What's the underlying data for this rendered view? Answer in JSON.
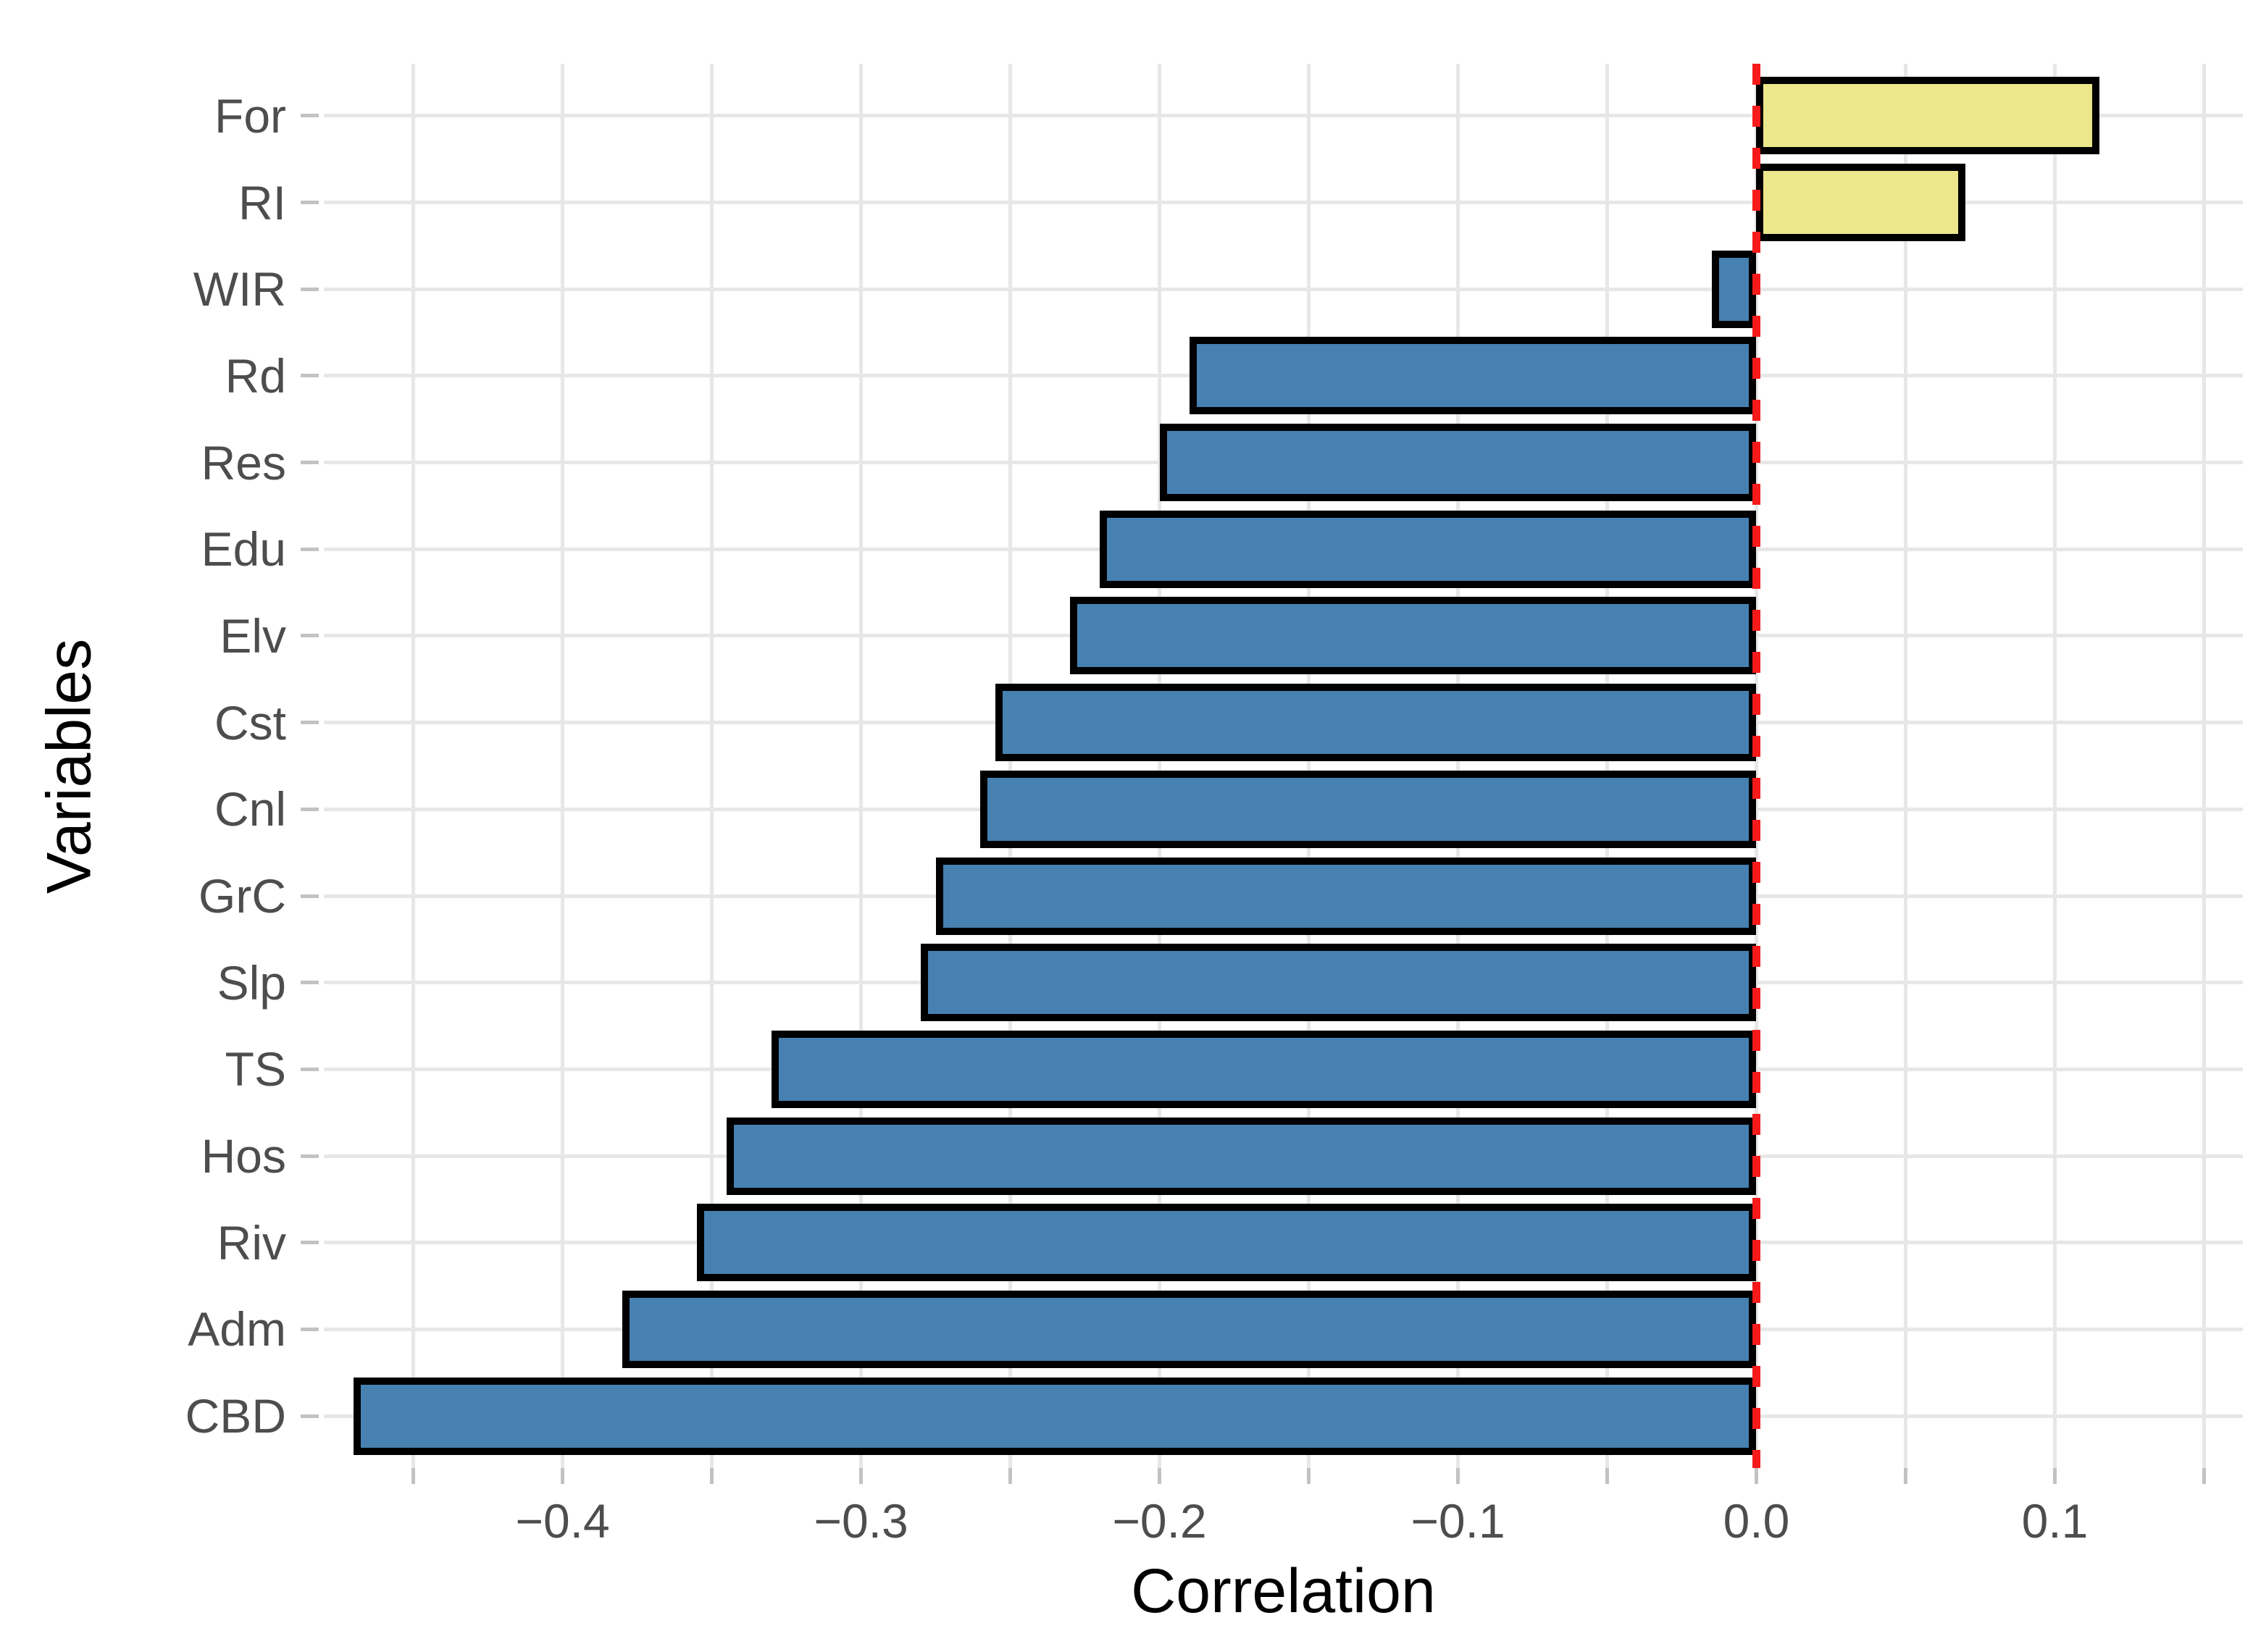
{
  "chart_data": {
    "type": "bar",
    "orientation": "horizontal",
    "title": "",
    "xlabel": "Correlation",
    "ylabel": "Variables",
    "categories": [
      "For",
      "RI",
      "WIR",
      "Rd",
      "Res",
      "Edu",
      "Elv",
      "Cst",
      "Cnl",
      "GrC",
      "Slp",
      "TS",
      "Hos",
      "Riv",
      "Adm",
      "CBD"
    ],
    "values": [
      0.115,
      0.07,
      -0.015,
      -0.19,
      -0.2,
      -0.22,
      -0.23,
      -0.255,
      -0.26,
      -0.275,
      -0.28,
      -0.33,
      -0.345,
      -0.355,
      -0.38,
      -0.47
    ],
    "x_ticks": [
      -0.4,
      -0.3,
      -0.2,
      -0.1,
      0.0,
      0.1
    ],
    "x_tick_labels": [
      "−0.4",
      "−0.3",
      "−0.2",
      "−0.1",
      "0.0",
      "0.1"
    ],
    "xlim": [
      -0.48,
      0.163
    ],
    "minor_grid_step": 0.05,
    "grid": true,
    "legend": "none",
    "reference_line": {
      "x": 0.0,
      "style": "dashed",
      "color": "#F61A1A"
    },
    "colors": {
      "positive_fill": "#EDE78C",
      "negative_fill": "#4681B2",
      "bar_border": "#000000",
      "gridline": "#E7E7E7",
      "tick": "#C2C2C2",
      "tick_label": "#4D4D4D",
      "axis_title": "#000000",
      "background": "#FFFFFF"
    }
  }
}
